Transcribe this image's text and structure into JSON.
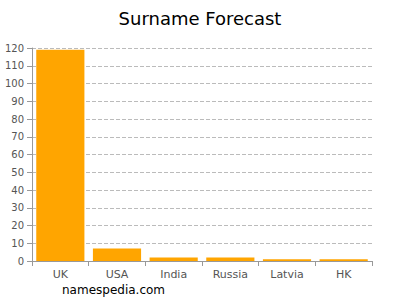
{
  "chart_data": {
    "type": "bar",
    "title": "Surname Forecast",
    "categories": [
      "UK",
      "USA",
      "India",
      "Russia",
      "Latvia",
      "HK"
    ],
    "values": [
      119,
      7,
      2,
      2,
      1,
      1
    ],
    "color": "#ffa500",
    "ylim": [
      0,
      120
    ],
    "yticks": [
      0,
      10,
      20,
      30,
      40,
      50,
      60,
      70,
      80,
      90,
      100,
      110,
      120
    ],
    "grid": true,
    "annotations": [
      "namespedia.com"
    ]
  }
}
